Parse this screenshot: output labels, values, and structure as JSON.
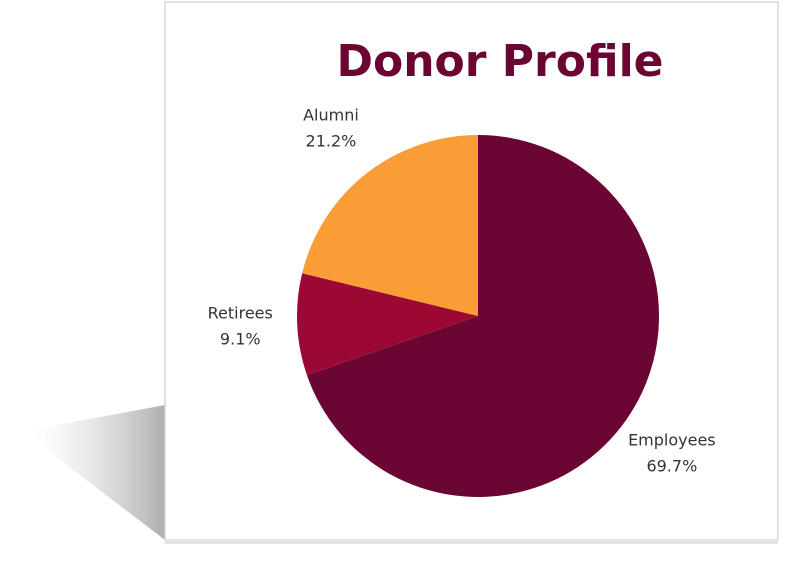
{
  "chart_data": {
    "type": "pie",
    "title": "Donor Profile",
    "categories": [
      "Employees",
      "Retirees",
      "Alumni"
    ],
    "values": [
      69.7,
      9.1,
      21.2
    ],
    "value_labels": [
      "69.7%",
      "9.1%",
      "21.2%"
    ],
    "colors": [
      "#6b0533",
      "#9b0833",
      "#fb9d37"
    ]
  }
}
